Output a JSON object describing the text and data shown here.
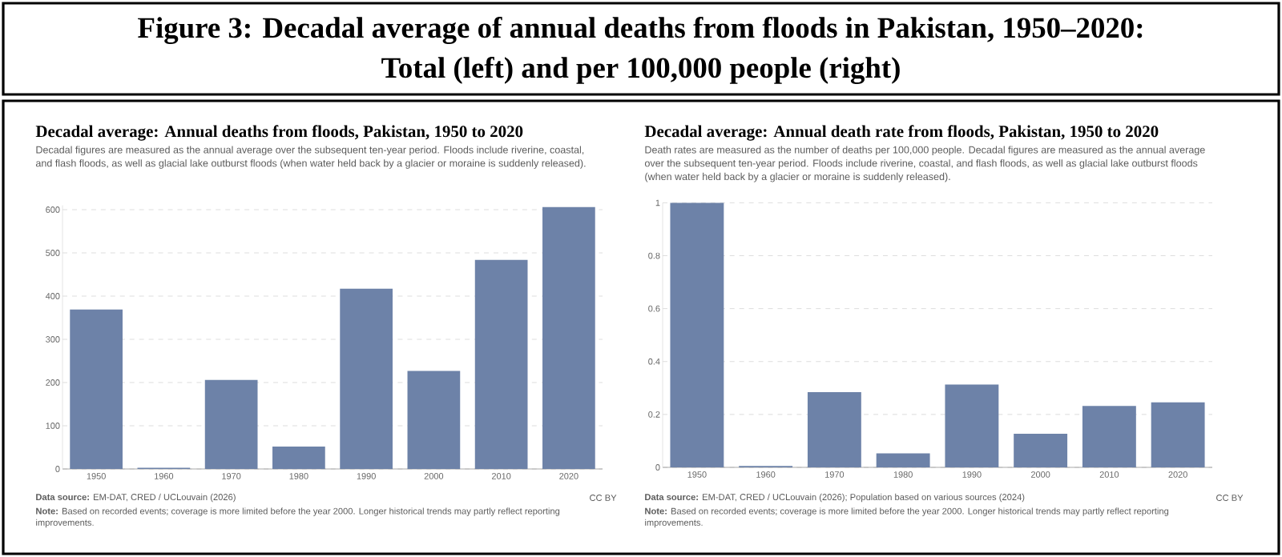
{
  "chart_data": [
    {
      "type": "bar",
      "title": "Decadal average: Annual deaths from floods, Pakistan, 1950 to 2020",
      "subtitle": "Decadal figures are measured as the annual average over the subsequent ten-year period. Floods include riverine, coastal, and flash floods, as well as glacial lake outburst floods (when water held back by a glacier or moraine is suddenly released).",
      "categories": [
        "1950",
        "1960",
        "1970",
        "1980",
        "1990",
        "2000",
        "2010",
        "2020"
      ],
      "values": [
        369,
        3,
        206,
        52,
        417,
        227,
        484,
        606
      ],
      "color": "#6d82a8",
      "ylim": [
        0,
        610
      ],
      "yticks": [
        0,
        100,
        200,
        300,
        400,
        500,
        600
      ],
      "grid": "y",
      "annotations": [
        "Figure 3: Decadal average of annual deaths from floods in Pakistan, 1950–2020:",
        "Total (left) and per 100,000 people (right)",
        "**Data source:** EM-DAT, CRED / UCLouvain (2026)",
        "CC BY",
        "**Note:** Based on recorded events; coverage is more limited before the year 2000. Longer historical trends may partly reflect reporting improvements."
      ]
    },
    {
      "type": "bar",
      "title": "Decadal average: Annual death rate from floods, Pakistan, 1950 to 2020",
      "subtitle": "Death rates are measured as the number of deaths per 100,000 people. Decadal figures are measured as the annual average over the subsequent ten-year period. Floods include riverine, coastal, and flash floods, as well as glacial lake outburst floods (when water held back by a glacier or moraine is suddenly released).",
      "categories": [
        "1950",
        "1960",
        "1970",
        "1980",
        "1990",
        "2000",
        "2010",
        "2020"
      ],
      "values": [
        1.0,
        0.005,
        0.284,
        0.053,
        0.313,
        0.127,
        0.232,
        0.246
      ],
      "color": "#6d82a8",
      "ylim": [
        0,
        1
      ],
      "yticks": [
        0,
        0.2,
        0.4,
        0.6,
        0.8,
        1
      ],
      "grid": "y",
      "annotations": [
        "**Data source:** EM-DAT, CRED / UCLouvain (2026); Population based on various sources (2024)",
        "CC BY",
        "**Note:** Based on recorded events; coverage is more limited before the year 2000. Longer historical trends may partly reflect reporting improvements."
      ]
    }
  ]
}
